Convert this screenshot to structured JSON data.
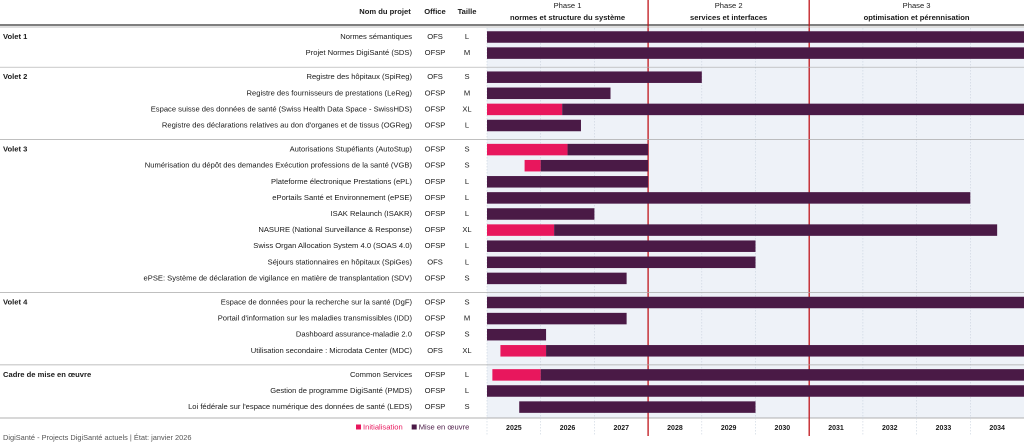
{
  "header": {
    "name": "Nom du projet",
    "office": "Office",
    "size": "Taille"
  },
  "chart_data": {
    "type": "gantt",
    "xlim": [
      2025,
      2035
    ],
    "xticks": [
      2025,
      2026,
      2027,
      2028,
      2029,
      2030,
      2031,
      2032,
      2033,
      2034
    ],
    "phases": [
      {
        "name": "Phase 1",
        "subtitle": "normes et structure du système",
        "start": 2025,
        "end": 2028
      },
      {
        "name": "Phase 2",
        "subtitle": "services et interfaces",
        "start": 2028,
        "end": 2031
      },
      {
        "name": "Phase 3",
        "subtitle": "optimisation et pérennisation",
        "start": 2031,
        "end": 2035
      }
    ],
    "series": [
      {
        "name": "Initialisation",
        "color": "#e8175d"
      },
      {
        "name": "Mise en œuvre",
        "color": "#4a1a46"
      }
    ],
    "groups": [
      {
        "name": "Volet 1",
        "projects": [
          {
            "name": "Normes sémantiques",
            "office": "OFS",
            "size": "L",
            "impl": [
              2025,
              2035
            ]
          },
          {
            "name": "Projet Normes DigiSanté (SDS)",
            "office": "OFSP",
            "size": "M",
            "impl": [
              2025,
              2035
            ]
          }
        ]
      },
      {
        "name": "Volet 2",
        "projects": [
          {
            "name": "Registre des hôpitaux (SpiReg)",
            "office": "OFS",
            "size": "S",
            "impl": [
              2025,
              2029
            ]
          },
          {
            "name": "Registre des fournisseurs de prestations (LeReg)",
            "office": "OFSP",
            "size": "M",
            "impl": [
              2025,
              2027.3
            ]
          },
          {
            "name": "Espace suisse des données de santé (Swiss Health Data Space - SwissHDS)",
            "office": "OFSP",
            "size": "XL",
            "init": [
              2025,
              2026.4
            ],
            "impl": [
              2026.4,
              2035
            ]
          },
          {
            "name": "Registre des déclarations relatives au don d'organes et de tissus (OGReg)",
            "office": "OFSP",
            "size": "L",
            "impl": [
              2025,
              2026.75
            ]
          }
        ]
      },
      {
        "name": "Volet 3",
        "projects": [
          {
            "name": "Autorisations Stupéfiants (AutoStup)",
            "office": "OFSP",
            "size": "S",
            "init": [
              2025,
              2026.5
            ],
            "impl": [
              2026.5,
              2028
            ]
          },
          {
            "name": "Numérisation du dépôt des demandes Exécution professions de la santé (VGB)",
            "office": "OFSP",
            "size": "S",
            "init": [
              2025.7,
              2026
            ],
            "impl": [
              2026,
              2028
            ]
          },
          {
            "name": "Plateforme électronique Prestations (ePL)",
            "office": "OFSP",
            "size": "L",
            "impl": [
              2025,
              2028
            ]
          },
          {
            "name": "ePortails Santé et Environnement (ePSE)",
            "office": "OFSP",
            "size": "L",
            "impl": [
              2025,
              2034
            ]
          },
          {
            "name": "ISAK Relaunch (ISAKR)",
            "office": "OFSP",
            "size": "L",
            "impl": [
              2025,
              2027
            ]
          },
          {
            "name": "NASURE (National Surveillance & Response)",
            "office": "OFSP",
            "size": "XL",
            "init": [
              2025,
              2026.25
            ],
            "impl": [
              2026.25,
              2034.5
            ]
          },
          {
            "name": "Swiss Organ Allocation System 4.0 (SOAS 4.0)",
            "office": "OFSP",
            "size": "L",
            "impl": [
              2025,
              2030
            ]
          },
          {
            "name": "Séjours stationnaires en hôpitaux (SpiGes)",
            "office": "OFS",
            "size": "L",
            "impl": [
              2025,
              2030
            ]
          },
          {
            "name": "ePSE: Système de déclaration de vigilance en matière de transplantation (SDV)",
            "office": "OFSP",
            "size": "S",
            "impl": [
              2025,
              2027.6
            ]
          }
        ]
      },
      {
        "name": "Volet 4",
        "projects": [
          {
            "name": "Espace de données pour la recherche sur la santé (DgF)",
            "office": "OFSP",
            "size": "S",
            "impl": [
              2025,
              2035
            ]
          },
          {
            "name": "Portail d'information sur les maladies transmissibles (IDD)",
            "office": "OFSP",
            "size": "M",
            "impl": [
              2025,
              2027.6
            ]
          },
          {
            "name": "Dashboard assurance-maladie 2.0",
            "office": "OFSP",
            "size": "S",
            "impl": [
              2025,
              2026.1
            ]
          },
          {
            "name": "Utilisation secondaire : Microdata Center (MDC)",
            "office": "OFS",
            "size": "XL",
            "init": [
              2025.25,
              2026.1
            ],
            "impl": [
              2026.1,
              2035
            ]
          }
        ]
      },
      {
        "name": "Cadre de mise en œuvre",
        "projects": [
          {
            "name": "Common Services",
            "office": "OFSP",
            "size": "L",
            "init": [
              2025.1,
              2026
            ],
            "impl": [
              2026,
              2035
            ]
          },
          {
            "name": "Gestion de programme DigiSanté (PMDS)",
            "office": "OFSP",
            "size": "L",
            "impl": [
              2025,
              2035
            ]
          },
          {
            "name": "Loi fédérale sur l'espace numérique des données de santé (LEDS)",
            "office": "OFSP",
            "size": "S",
            "impl": [
              2025.6,
              2030
            ]
          }
        ]
      }
    ]
  },
  "footer": "DigiSanté - Projects DigiSanté actuels | État: janvier 2026"
}
